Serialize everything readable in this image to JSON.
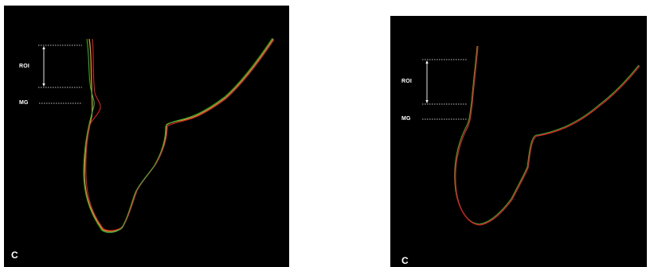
{
  "colors": {
    "background": "#000000",
    "trace_red": "#e02020",
    "trace_green": "#3aa83a",
    "trace_yellow": "#c8a030",
    "annotation": "#ffffff"
  },
  "left_panel": {
    "roi_label": "ROI",
    "mg_label": "MG",
    "panel_letter": "C"
  },
  "right_panel": {
    "roi_label": "ROI",
    "mg_label": "MG",
    "panel_letter": "C"
  }
}
